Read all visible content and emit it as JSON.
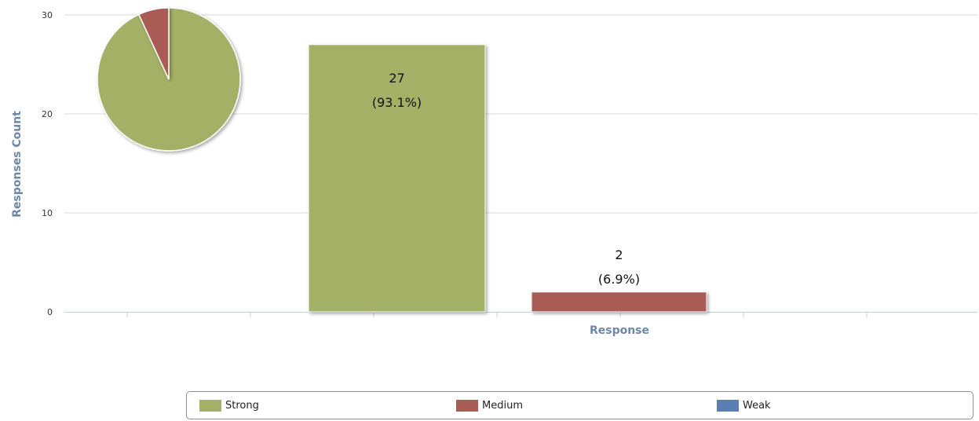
{
  "chart_data": {
    "type": "bar",
    "xlabel": "Response",
    "ylabel": "Responses Count",
    "ylim": [
      0,
      30
    ],
    "yticks": [
      0,
      10,
      20,
      30
    ],
    "grid": true,
    "legend_position": "bottom",
    "series": [
      {
        "name": "Strong",
        "value": 27,
        "label_value": "27",
        "label_pct": "(93.1%)",
        "color": "#a4b065"
      },
      {
        "name": "Medium",
        "value": 2,
        "label_value": "2",
        "label_pct": "(6.9%)",
        "color": "#a85c55"
      },
      {
        "name": "Weak",
        "value": 0,
        "label_value": "",
        "label_pct": "",
        "color": "#5a7eb4"
      }
    ],
    "inset_pie": {
      "type": "pie",
      "slices": [
        {
          "name": "Strong",
          "value": 27,
          "color": "#a4b065"
        },
        {
          "name": "Medium",
          "value": 2,
          "color": "#a85c55"
        }
      ]
    }
  }
}
